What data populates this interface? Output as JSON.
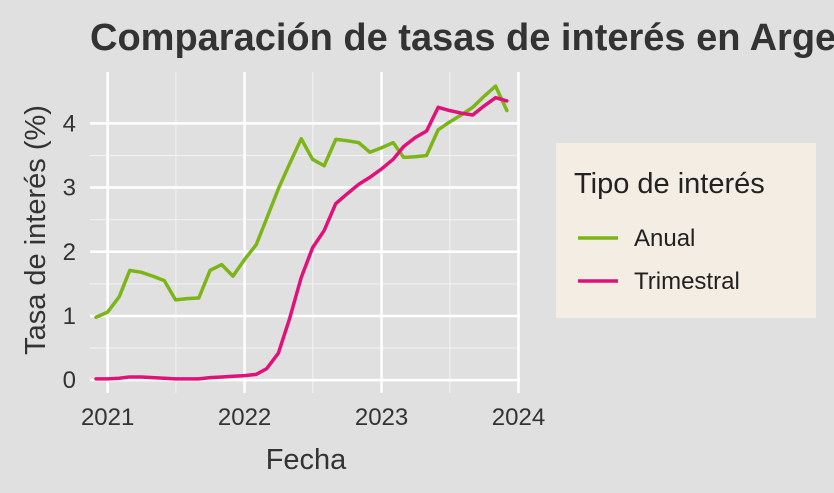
{
  "chart_data": {
    "type": "line",
    "title": "Comparación de tasas de interés en Argentina",
    "xlabel": "Fecha",
    "ylabel": "Tasa de interés (%)",
    "x_ticks": [
      "2021",
      "2022",
      "2023",
      "2024"
    ],
    "y_ticks": [
      "0",
      "1",
      "2",
      "3",
      "4"
    ],
    "xlim": [
      "2020-11-15",
      "2024-01-05"
    ],
    "ylim": [
      -0.2,
      4.8
    ],
    "grid": true,
    "legend": {
      "title": "Tipo de interés",
      "position": "right"
    },
    "x": [
      "2020-12",
      "2021-01",
      "2021-02",
      "2021-03",
      "2021-04",
      "2021-05",
      "2021-06",
      "2021-07",
      "2021-08",
      "2021-09",
      "2021-10",
      "2021-11",
      "2021-12",
      "2022-01",
      "2022-02",
      "2022-03",
      "2022-04",
      "2022-05",
      "2022-06",
      "2022-07",
      "2022-08",
      "2022-09",
      "2022-10",
      "2022-11",
      "2022-12",
      "2023-01",
      "2023-02",
      "2023-03",
      "2023-04",
      "2023-05",
      "2023-06",
      "2023-07",
      "2023-08",
      "2023-09",
      "2023-10",
      "2023-11",
      "2023-12"
    ],
    "series": [
      {
        "name": "Anual",
        "color": "#7cb518",
        "values": [
          0.98,
          1.06,
          1.3,
          1.71,
          1.68,
          1.62,
          1.55,
          1.25,
          1.27,
          1.28,
          1.71,
          1.8,
          1.62,
          1.88,
          2.11,
          2.52,
          2.98,
          3.37,
          3.76,
          3.44,
          3.34,
          3.75,
          3.73,
          3.7,
          3.55,
          3.62,
          3.7,
          3.47,
          3.48,
          3.5,
          3.9,
          4.02,
          4.13,
          4.25,
          4.42,
          4.58,
          4.2
        ]
      },
      {
        "name": "Trimestral",
        "color": "#e0127a",
        "values": [
          0.02,
          0.02,
          0.03,
          0.05,
          0.05,
          0.04,
          0.03,
          0.02,
          0.02,
          0.02,
          0.04,
          0.05,
          0.06,
          0.07,
          0.09,
          0.18,
          0.42,
          0.96,
          1.6,
          2.06,
          2.33,
          2.75,
          2.9,
          3.05,
          3.16,
          3.29,
          3.44,
          3.64,
          3.78,
          3.88,
          4.25,
          4.2,
          4.16,
          4.13,
          4.27,
          4.4,
          4.35
        ]
      }
    ]
  }
}
